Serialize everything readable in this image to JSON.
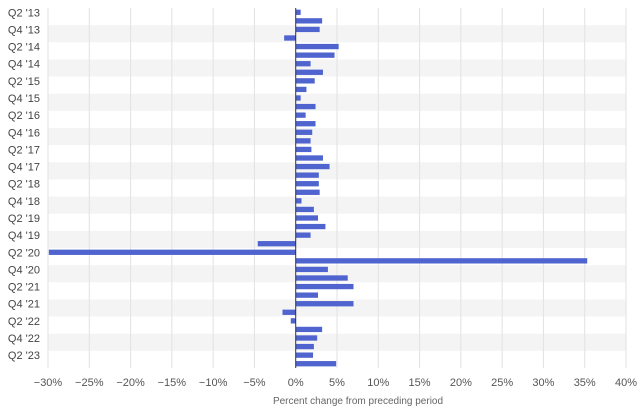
{
  "chart_data": {
    "type": "bar",
    "orientation": "horizontal",
    "title": "",
    "xlabel": "Percent change from preceding period",
    "ylabel": "",
    "xlim": [
      -30,
      40
    ],
    "x_ticks": [
      -30,
      -25,
      -20,
      -15,
      -10,
      -5,
      0,
      5,
      10,
      15,
      20,
      25,
      30,
      35,
      40
    ],
    "x_tick_labels": [
      "−30%",
      "−25%",
      "−20%",
      "−15%",
      "−10%",
      "−5%",
      "0%",
      "5%",
      "10%",
      "15%",
      "20%",
      "25%",
      "30%",
      "35%",
      "40%"
    ],
    "grid": true,
    "legend": "none",
    "bar_color": "#5064cf",
    "categories": [
      "Q2 '13",
      "Q3 '13",
      "Q4 '13",
      "Q1 '14",
      "Q2 '14",
      "Q3 '14",
      "Q4 '14",
      "Q1 '15",
      "Q2 '15",
      "Q3 '15",
      "Q4 '15",
      "Q1 '16",
      "Q2 '16",
      "Q3 '16",
      "Q4 '16",
      "Q1 '17",
      "Q2 '17",
      "Q3 '17",
      "Q4 '17",
      "Q1 '18",
      "Q2 '18",
      "Q3 '18",
      "Q4 '18",
      "Q1 '19",
      "Q2 '19",
      "Q3 '19",
      "Q4 '19",
      "Q1 '20",
      "Q2 '20",
      "Q3 '20",
      "Q4 '20",
      "Q1 '21",
      "Q2 '21",
      "Q3 '21",
      "Q4 '21",
      "Q1 '22",
      "Q2 '22",
      "Q3 '22",
      "Q4 '22",
      "Q1 '23",
      "Q2 '23",
      "Q3 '23"
    ],
    "category_labels_shown": [
      "Q2 '13",
      "Q4 '13",
      "Q2 '14",
      "Q4 '14",
      "Q2 '15",
      "Q4 '15",
      "Q2 '16",
      "Q4 '16",
      "Q2 '17",
      "Q4 '17",
      "Q2 '18",
      "Q4 '18",
      "Q2 '19",
      "Q4 '19",
      "Q2 '20",
      "Q4 '20",
      "Q2 '21",
      "Q4 '21",
      "Q2 '22",
      "Q4 '22",
      "Q2 '23"
    ],
    "values": [
      0.6,
      3.2,
      2.9,
      -1.4,
      5.2,
      4.7,
      1.8,
      3.3,
      2.3,
      1.3,
      0.6,
      2.4,
      1.2,
      2.4,
      2.0,
      1.8,
      1.9,
      3.3,
      4.1,
      2.8,
      2.8,
      2.9,
      0.7,
      2.2,
      2.7,
      3.6,
      1.8,
      -4.6,
      -29.9,
      35.3,
      3.9,
      6.3,
      7.0,
      2.7,
      7.0,
      -1.6,
      -0.6,
      3.2,
      2.6,
      2.2,
      2.1,
      4.9
    ]
  }
}
